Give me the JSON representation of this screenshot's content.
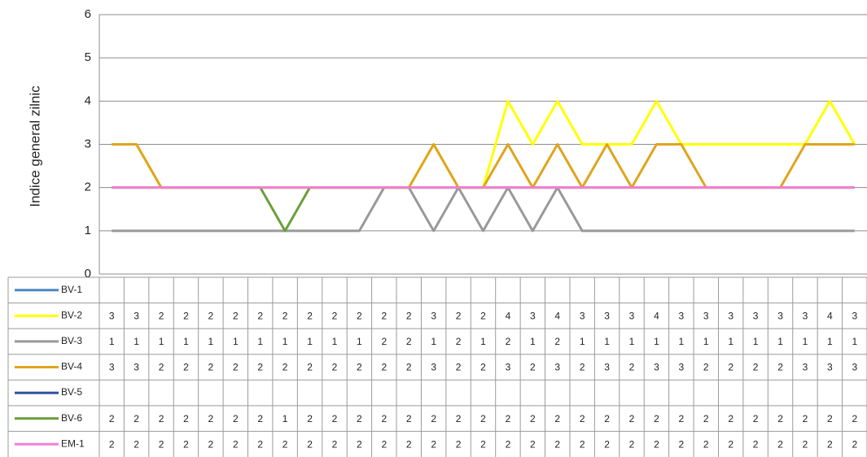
{
  "chart_data": {
    "type": "line",
    "y_label": "Indice general zilnic",
    "ylim": [
      0,
      6
    ],
    "yticks": [
      0,
      1,
      2,
      3,
      4,
      5,
      6
    ],
    "grid": true,
    "data_table": true,
    "series": [
      {
        "name": "BV-1",
        "color": "#4a86c4",
        "values": [
          null,
          null,
          null,
          null,
          null,
          null,
          null,
          null,
          null,
          null,
          null,
          null,
          null,
          null,
          null,
          null,
          null,
          null,
          null,
          null,
          null,
          null,
          null,
          null,
          null,
          null,
          null,
          null,
          null,
          null,
          null
        ]
      },
      {
        "name": "BV-2",
        "color": "#ffff00",
        "values": [
          3,
          3,
          2,
          2,
          2,
          2,
          2,
          2,
          2,
          2,
          2,
          2,
          2,
          3,
          2,
          2,
          4,
          3,
          4,
          3,
          3,
          3,
          4,
          3,
          3,
          3,
          3,
          3,
          3,
          4,
          3
        ]
      },
      {
        "name": "BV-3",
        "color": "#999999",
        "values": [
          1,
          1,
          1,
          1,
          1,
          1,
          1,
          1,
          1,
          1,
          1,
          2,
          2,
          1,
          2,
          1,
          2,
          1,
          2,
          1,
          1,
          1,
          1,
          1,
          1,
          1,
          1,
          1,
          1,
          1,
          1
        ]
      },
      {
        "name": "BV-4",
        "color": "#e0a41c",
        "values": [
          3,
          3,
          2,
          2,
          2,
          2,
          2,
          2,
          2,
          2,
          2,
          2,
          2,
          3,
          2,
          2,
          3,
          2,
          3,
          2,
          3,
          2,
          3,
          3,
          2,
          2,
          2,
          2,
          3,
          3,
          3
        ]
      },
      {
        "name": "BV-5",
        "color": "#2f4f9e",
        "values": [
          null,
          null,
          null,
          null,
          null,
          null,
          null,
          null,
          null,
          null,
          null,
          null,
          null,
          null,
          null,
          null,
          null,
          null,
          null,
          null,
          null,
          null,
          null,
          null,
          null,
          null,
          null,
          null,
          null,
          null,
          null
        ]
      },
      {
        "name": "BV-6",
        "color": "#6a9f3a",
        "values": [
          2,
          2,
          2,
          2,
          2,
          2,
          2,
          1,
          2,
          2,
          2,
          2,
          2,
          2,
          2,
          2,
          2,
          2,
          2,
          2,
          2,
          2,
          2,
          2,
          2,
          2,
          2,
          2,
          2,
          2,
          2
        ]
      },
      {
        "name": "EM-1",
        "color": "#f17fd6",
        "values": [
          2,
          2,
          2,
          2,
          2,
          2,
          2,
          2,
          2,
          2,
          2,
          2,
          2,
          2,
          2,
          2,
          2,
          2,
          2,
          2,
          2,
          2,
          2,
          2,
          2,
          2,
          2,
          2,
          2,
          2,
          2
        ]
      }
    ]
  }
}
